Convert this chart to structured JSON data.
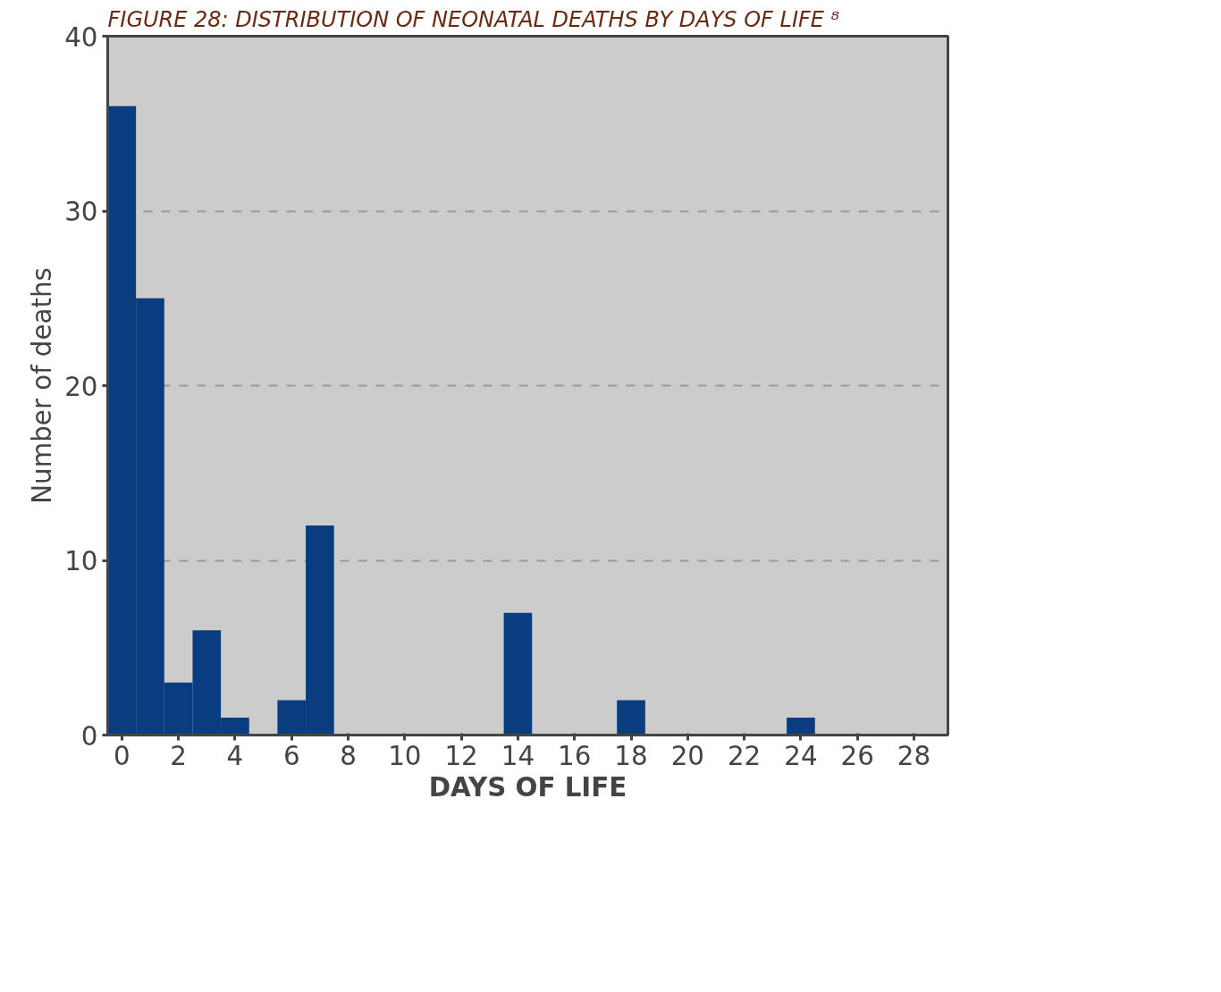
{
  "chart_data": {
    "type": "bar",
    "title": "FIGURE 28: DISTRIBUTION OF NEONATAL DEATHS BY DAYS OF LIFE ⁸",
    "xlabel": "DAYS OF LIFE",
    "ylabel": "Number of deaths",
    "x": [
      0,
      1,
      2,
      3,
      4,
      5,
      6,
      7,
      8,
      9,
      10,
      11,
      12,
      13,
      14,
      15,
      16,
      17,
      18,
      19,
      20,
      21,
      22,
      23,
      24,
      25,
      26,
      27,
      28
    ],
    "values": [
      36,
      25,
      3,
      6,
      1,
      0,
      2,
      12,
      0,
      0,
      0,
      0,
      0,
      0,
      7,
      0,
      0,
      0,
      2,
      0,
      0,
      0,
      0,
      0,
      1,
      0,
      0,
      0,
      0
    ],
    "color": "#0a3d80",
    "xlim": [
      -0.5,
      29.2
    ],
    "ylim": [
      0,
      40
    ],
    "xticks": [
      0,
      2,
      4,
      6,
      8,
      10,
      12,
      14,
      16,
      18,
      20,
      22,
      24,
      26,
      28
    ],
    "yticks": [
      0,
      10,
      20,
      30,
      40
    ],
    "grid": "y"
  }
}
